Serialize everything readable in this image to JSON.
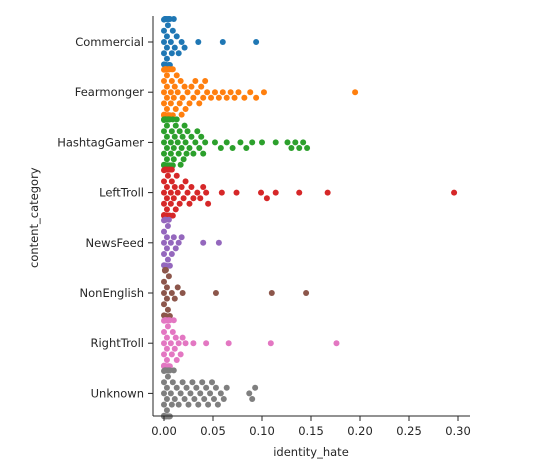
{
  "chart_data": {
    "type": "scatter",
    "subtype": "swarm",
    "title": "",
    "xlabel": "identity_hate",
    "ylabel": "content_category",
    "xlim": [
      -0.013,
      0.31
    ],
    "xticks": [
      0.0,
      0.05,
      0.1,
      0.15,
      0.2,
      0.25,
      0.3
    ],
    "xtick_labels": [
      "0.00",
      "0.05",
      "0.10",
      "0.15",
      "0.20",
      "0.25",
      "0.30"
    ],
    "grid": false,
    "legend": "none",
    "categories": [
      "Commercial",
      "Fearmonger",
      "HashtagGamer",
      "LeftTroll",
      "NewsFeed",
      "NonEnglish",
      "RightTroll",
      "Unknown"
    ],
    "series": [
      {
        "category": "Commercial",
        "color": "#1f77b4",
        "values": [
          0.0,
          0.0,
          0.0,
          0.0,
          0.0,
          0.001,
          0.001,
          0.001,
          0.001,
          0.001,
          0.002,
          0.002,
          0.002,
          0.002,
          0.003,
          0.003,
          0.003,
          0.004,
          0.004,
          0.005,
          0.005,
          0.006,
          0.006,
          0.007,
          0.008,
          0.009,
          0.01,
          0.011,
          0.013,
          0.015,
          0.018,
          0.021,
          0.035,
          0.06,
          0.094
        ]
      },
      {
        "category": "Fearmonger",
        "color": "#ff7f0e",
        "values": [
          0.0,
          0.0,
          0.0,
          0.0,
          0.0,
          0.0,
          0.001,
          0.001,
          0.001,
          0.001,
          0.001,
          0.001,
          0.002,
          0.002,
          0.002,
          0.002,
          0.002,
          0.003,
          0.003,
          0.003,
          0.003,
          0.004,
          0.004,
          0.004,
          0.005,
          0.005,
          0.005,
          0.006,
          0.006,
          0.007,
          0.007,
          0.008,
          0.008,
          0.009,
          0.009,
          0.01,
          0.011,
          0.012,
          0.013,
          0.014,
          0.016,
          0.017,
          0.018,
          0.019,
          0.021,
          0.022,
          0.024,
          0.026,
          0.028,
          0.03,
          0.032,
          0.034,
          0.036,
          0.038,
          0.04,
          0.042,
          0.044,
          0.048,
          0.052,
          0.056,
          0.06,
          0.064,
          0.068,
          0.072,
          0.076,
          0.082,
          0.088,
          0.094,
          0.102,
          0.195
        ]
      },
      {
        "category": "HashtagGamer",
        "color": "#2ca02c",
        "values": [
          0.0,
          0.0,
          0.0,
          0.0,
          0.0,
          0.0,
          0.0,
          0.001,
          0.001,
          0.001,
          0.001,
          0.001,
          0.001,
          0.002,
          0.002,
          0.002,
          0.002,
          0.002,
          0.003,
          0.003,
          0.003,
          0.003,
          0.004,
          0.004,
          0.004,
          0.004,
          0.005,
          0.005,
          0.005,
          0.006,
          0.006,
          0.006,
          0.007,
          0.007,
          0.008,
          0.008,
          0.009,
          0.009,
          0.01,
          0.01,
          0.011,
          0.012,
          0.013,
          0.014,
          0.015,
          0.016,
          0.017,
          0.018,
          0.019,
          0.02,
          0.021,
          0.022,
          0.023,
          0.024,
          0.026,
          0.028,
          0.03,
          0.032,
          0.034,
          0.036,
          0.038,
          0.04,
          0.042,
          0.052,
          0.058,
          0.064,
          0.07,
          0.078,
          0.084,
          0.09,
          0.1,
          0.114,
          0.126,
          0.13,
          0.134,
          0.138,
          0.142,
          0.146
        ]
      },
      {
        "category": "LeftTroll",
        "color": "#d62728",
        "values": [
          0.0,
          0.0,
          0.0,
          0.0,
          0.0,
          0.0,
          0.001,
          0.001,
          0.001,
          0.001,
          0.001,
          0.002,
          0.002,
          0.002,
          0.002,
          0.003,
          0.003,
          0.003,
          0.004,
          0.004,
          0.004,
          0.005,
          0.005,
          0.006,
          0.006,
          0.007,
          0.007,
          0.008,
          0.008,
          0.009,
          0.01,
          0.011,
          0.012,
          0.013,
          0.014,
          0.016,
          0.018,
          0.02,
          0.022,
          0.024,
          0.026,
          0.028,
          0.03,
          0.034,
          0.037,
          0.04,
          0.043,
          0.045,
          0.059,
          0.074,
          0.099,
          0.105,
          0.114,
          0.138,
          0.167,
          0.296
        ]
      },
      {
        "category": "NewsFeed",
        "color": "#9467bd",
        "values": [
          0.0,
          0.0,
          0.0,
          0.0,
          0.0,
          0.001,
          0.001,
          0.001,
          0.001,
          0.002,
          0.002,
          0.002,
          0.003,
          0.003,
          0.004,
          0.004,
          0.005,
          0.006,
          0.007,
          0.008,
          0.01,
          0.012,
          0.015,
          0.018,
          0.04,
          0.056
        ]
      },
      {
        "category": "NonEnglish",
        "color": "#8c564b",
        "values": [
          0.0,
          0.0,
          0.0,
          0.0,
          0.001,
          0.001,
          0.001,
          0.002,
          0.002,
          0.003,
          0.003,
          0.004,
          0.005,
          0.006,
          0.008,
          0.011,
          0.014,
          0.019,
          0.053,
          0.11,
          0.145
        ]
      },
      {
        "category": "RightTroll",
        "color": "#e377c2",
        "values": [
          0.0,
          0.0,
          0.0,
          0.0,
          0.0,
          0.0,
          0.001,
          0.001,
          0.001,
          0.001,
          0.001,
          0.002,
          0.002,
          0.002,
          0.002,
          0.003,
          0.003,
          0.003,
          0.004,
          0.004,
          0.004,
          0.005,
          0.005,
          0.006,
          0.006,
          0.007,
          0.008,
          0.009,
          0.01,
          0.011,
          0.012,
          0.013,
          0.015,
          0.017,
          0.019,
          0.022,
          0.03,
          0.043,
          0.066,
          0.109,
          0.176
        ]
      },
      {
        "category": "Unknown",
        "color": "#7f7f7f",
        "values": [
          0.0,
          0.0,
          0.0,
          0.0,
          0.0,
          0.0,
          0.001,
          0.001,
          0.001,
          0.001,
          0.001,
          0.002,
          0.002,
          0.002,
          0.002,
          0.003,
          0.003,
          0.003,
          0.004,
          0.004,
          0.004,
          0.005,
          0.005,
          0.006,
          0.006,
          0.007,
          0.008,
          0.009,
          0.01,
          0.011,
          0.013,
          0.015,
          0.017,
          0.019,
          0.021,
          0.023,
          0.025,
          0.027,
          0.029,
          0.031,
          0.033,
          0.035,
          0.037,
          0.039,
          0.041,
          0.043,
          0.045,
          0.047,
          0.049,
          0.051,
          0.053,
          0.055,
          0.058,
          0.061,
          0.064,
          0.087,
          0.09,
          0.093
        ]
      }
    ]
  }
}
